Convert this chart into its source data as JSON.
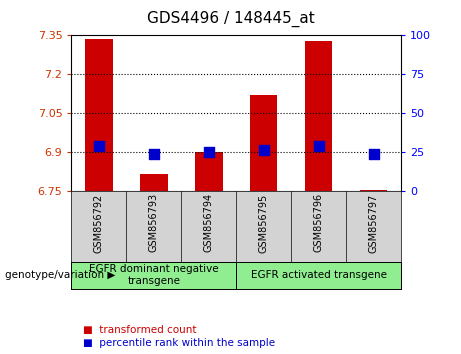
{
  "title": "GDS4496 / 148445_at",
  "samples": [
    "GSM856792",
    "GSM856793",
    "GSM856794",
    "GSM856795",
    "GSM856796",
    "GSM856797"
  ],
  "transformed_count": [
    7.335,
    6.815,
    6.9,
    7.12,
    7.33,
    6.755
  ],
  "percentile_rank": [
    6.925,
    6.895,
    6.9,
    6.91,
    6.925,
    6.895
  ],
  "ylim_left": [
    6.75,
    7.35
  ],
  "ylim_right": [
    0,
    100
  ],
  "yticks_left": [
    6.75,
    6.9,
    7.05,
    7.2,
    7.35
  ],
  "yticks_right": [
    0,
    25,
    50,
    75,
    100
  ],
  "ytick_labels_left": [
    "6.75",
    "6.9",
    "7.05",
    "7.2",
    "7.35"
  ],
  "ytick_labels_right": [
    "0",
    "25",
    "50",
    "75",
    "100"
  ],
  "hlines": [
    6.9,
    7.05,
    7.2
  ],
  "groups": [
    {
      "label": "EGFR dominant negative\ntransgene",
      "samples": 3
    },
    {
      "label": "EGFR activated transgene",
      "samples": 3
    }
  ],
  "bar_color": "#cc0000",
  "dot_color": "#0000cc",
  "bar_bottom": 6.75,
  "bar_width": 0.5,
  "dot_size": 45,
  "legend_red": "transformed count",
  "legend_blue": "percentile rank within the sample",
  "plot_bg": "#ffffff",
  "title_fontsize": 11,
  "tick_fontsize": 8,
  "sample_label_fontsize": 7,
  "group_label_fontsize": 7.5,
  "legend_fontsize": 7.5
}
